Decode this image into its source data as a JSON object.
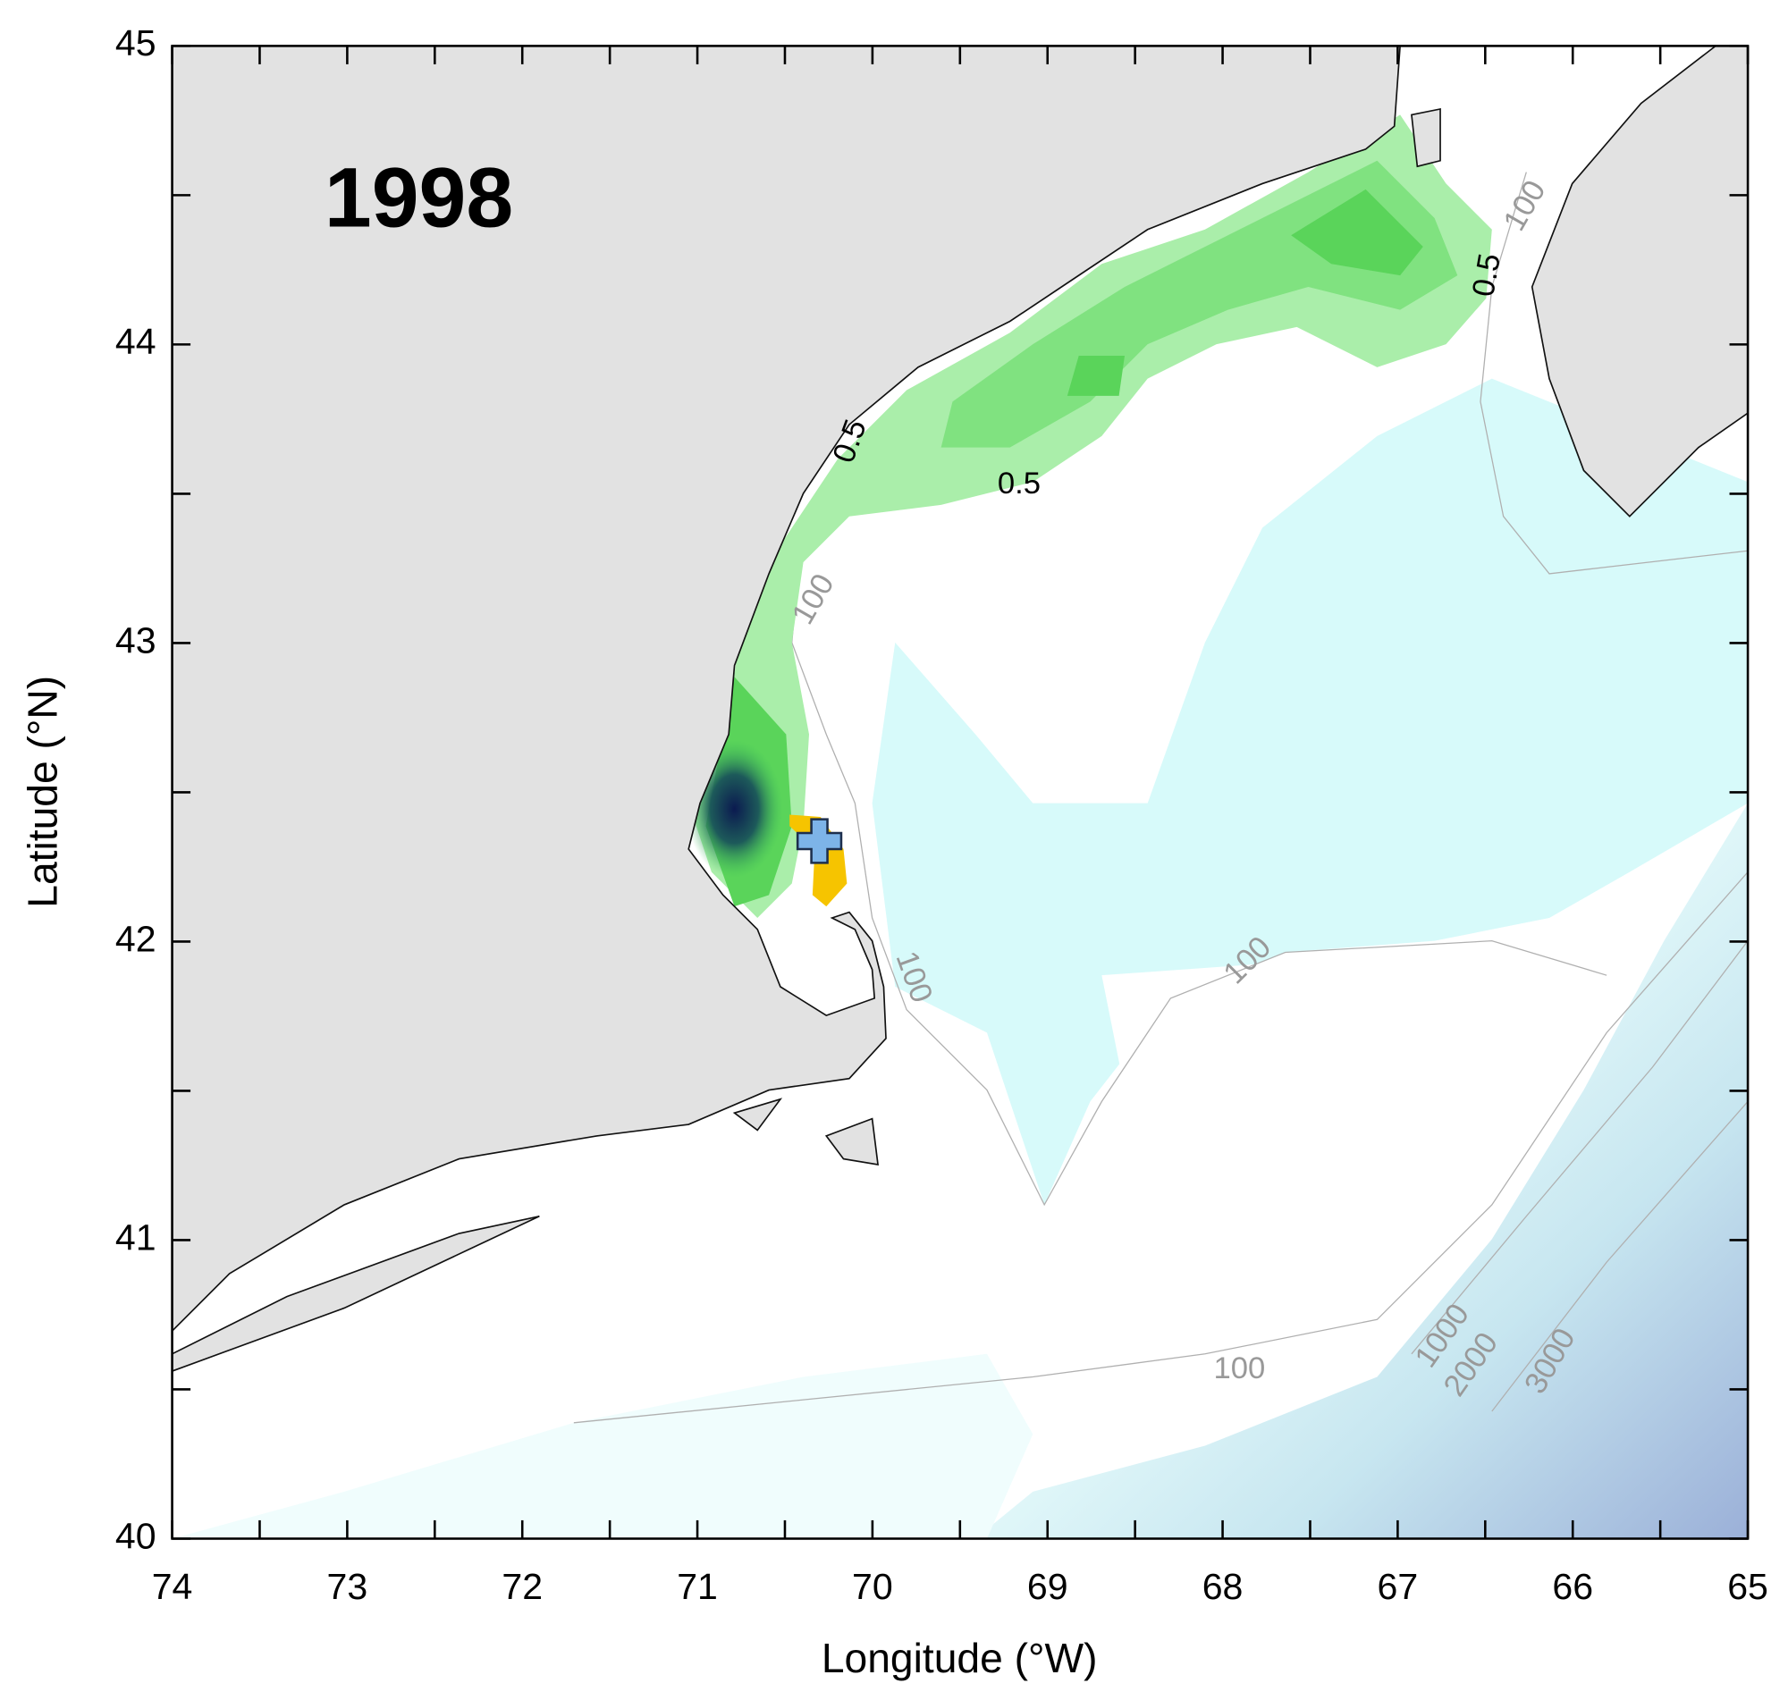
{
  "chart_data": {
    "type": "map",
    "title": "1998",
    "x_label": "Longitude (°W)",
    "y_label": "Latitude (°N)",
    "xlim": [
      74,
      65
    ],
    "ylim": [
      40,
      45
    ],
    "xticks": [
      74,
      73,
      72,
      71,
      70,
      69,
      68,
      67,
      66,
      65
    ],
    "yticks": [
      40,
      41,
      42,
      43,
      44,
      45
    ],
    "contour_labels": [
      0.5,
      0.5,
      0.5,
      100,
      100,
      100,
      100,
      100,
      1000,
      2000,
      3000
    ]
  }
}
